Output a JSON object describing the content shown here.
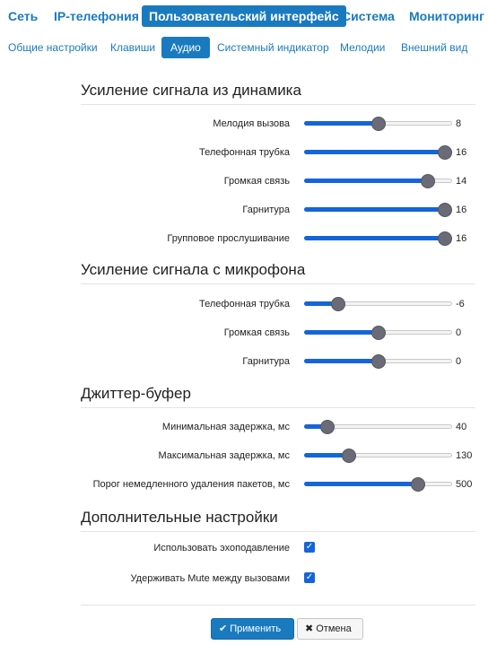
{
  "topnav": {
    "items": [
      {
        "label": "Сеть",
        "active": false
      },
      {
        "label": "IP-телефония",
        "active": false
      },
      {
        "label": "Пользовательский интерфейс",
        "active": true
      },
      {
        "label": "Система",
        "active": false
      },
      {
        "label": "Мониторинг",
        "active": false
      }
    ]
  },
  "subnav": {
    "items": [
      {
        "label": "Общие настройки",
        "active": false
      },
      {
        "label": "Клавиши",
        "active": false
      },
      {
        "label": "Аудио",
        "active": true
      },
      {
        "label": "Системный индикатор",
        "active": false
      },
      {
        "label": "Мелодии",
        "active": false
      },
      {
        "label": "Внешний вид",
        "active": false
      }
    ]
  },
  "speaker_gain": {
    "title": "Усиление сигнала из динамика",
    "rows": [
      {
        "label": "Мелодия вызова",
        "value": "8",
        "level": 0.5
      },
      {
        "label": "Телефонная трубка",
        "value": "16",
        "level": 1.0
      },
      {
        "label": "Громкая связь",
        "value": "14",
        "level": 0.875
      },
      {
        "label": "Гарнитура",
        "value": "16",
        "level": 1.0
      },
      {
        "label": "Групповое прослушивание",
        "value": "16",
        "level": 1.0
      }
    ]
  },
  "mic_gain": {
    "title": "Усиление сигнала с микрофона",
    "rows": [
      {
        "label": "Телефонная трубка",
        "value": "-6",
        "level": 0.2
      },
      {
        "label": "Громкая связь",
        "value": "0",
        "level": 0.5
      },
      {
        "label": "Гарнитура",
        "value": "0",
        "level": 0.5
      }
    ]
  },
  "jitter": {
    "title": "Джиттер-буфер",
    "rows": [
      {
        "label": "Минимальная задержка, мс",
        "value": "40",
        "level": 0.12
      },
      {
        "label": "Максимальная задержка, мс",
        "value": "130",
        "level": 0.28
      },
      {
        "label": "Порог немедленного удаления пакетов, мс",
        "value": "500",
        "level": 0.8
      }
    ]
  },
  "additional": {
    "title": "Дополнительные настройки",
    "rows": [
      {
        "label": "Использовать эхоподавление",
        "checked": true
      },
      {
        "label": "Удерживать Mute между вызовами",
        "checked": true
      }
    ]
  },
  "buttons": {
    "apply": "Применить",
    "apply_icon": "checkmark-icon",
    "cancel": "Отмена",
    "cancel_icon": "close-icon"
  },
  "colors": {
    "accent": "#1a7ac0",
    "slider_fill": "#1565d8",
    "thumb": "#6b6b78"
  }
}
